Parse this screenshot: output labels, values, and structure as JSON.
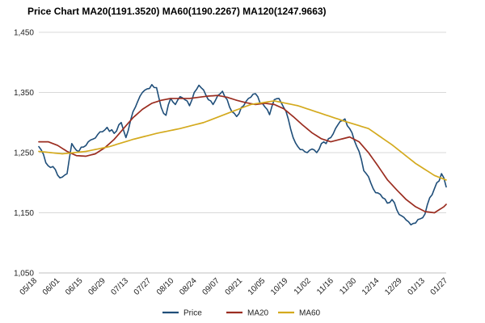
{
  "chart_data": {
    "type": "line",
    "title": "Price Chart MA20(1191.3520) MA60(1190.2267) MA120(1247.9663)",
    "xlabel": "",
    "ylabel": "",
    "ylim": [
      1050,
      1450
    ],
    "yticks": [
      1050,
      1150,
      1250,
      1350,
      1450
    ],
    "ytick_labels": [
      "1,050",
      "1,150",
      "1,250",
      "1,350",
      "1,450"
    ],
    "xtick_labels": [
      "05/18",
      "06/01",
      "06/15",
      "06/29",
      "07/13",
      "07/27",
      "08/10",
      "08/24",
      "09/07",
      "09/21",
      "10/05",
      "10/19",
      "11/02",
      "11/16",
      "11/30",
      "12/14",
      "12/29",
      "01/13",
      "01/27"
    ],
    "grid": "horizontal",
    "legend_position": "bottom",
    "x_count": 174,
    "series": [
      {
        "name": "Price",
        "color": "#1F4E79",
        "keypoints": [
          [
            0,
            1260
          ],
          [
            4,
            1228
          ],
          [
            7,
            1222
          ],
          [
            9,
            1208
          ],
          [
            12,
            1215
          ],
          [
            14,
            1265
          ],
          [
            17,
            1252
          ],
          [
            21,
            1268
          ],
          [
            25,
            1280
          ],
          [
            29,
            1292
          ],
          [
            32,
            1282
          ],
          [
            35,
            1300
          ],
          [
            37,
            1275
          ],
          [
            40,
            1318
          ],
          [
            42,
            1335
          ],
          [
            44,
            1350
          ],
          [
            46,
            1356
          ],
          [
            48,
            1363
          ],
          [
            50,
            1358
          ],
          [
            52,
            1325
          ],
          [
            54,
            1312
          ],
          [
            56,
            1340
          ],
          [
            58,
            1330
          ],
          [
            60,
            1343
          ],
          [
            62,
            1338
          ],
          [
            64,
            1328
          ],
          [
            66,
            1350
          ],
          [
            68,
            1362
          ],
          [
            70,
            1354
          ],
          [
            72,
            1338
          ],
          [
            74,
            1330
          ],
          [
            76,
            1345
          ],
          [
            78,
            1352
          ],
          [
            80,
            1338
          ],
          [
            82,
            1318
          ],
          [
            84,
            1310
          ],
          [
            86,
            1325
          ],
          [
            88,
            1335
          ],
          [
            90,
            1342
          ],
          [
            92,
            1348
          ],
          [
            94,
            1332
          ],
          [
            96,
            1326
          ],
          [
            98,
            1313
          ],
          [
            100,
            1338
          ],
          [
            102,
            1340
          ],
          [
            104,
            1325
          ],
          [
            106,
            1305
          ],
          [
            108,
            1275
          ],
          [
            110,
            1260
          ],
          [
            112,
            1255
          ],
          [
            114,
            1250
          ],
          [
            116,
            1256
          ],
          [
            118,
            1250
          ],
          [
            120,
            1265
          ],
          [
            122,
            1265
          ],
          [
            124,
            1275
          ],
          [
            126,
            1290
          ],
          [
            128,
            1302
          ],
          [
            130,
            1306
          ],
          [
            132,
            1290
          ],
          [
            134,
            1270
          ],
          [
            136,
            1252
          ],
          [
            138,
            1220
          ],
          [
            140,
            1210
          ],
          [
            142,
            1190
          ],
          [
            144,
            1183
          ],
          [
            146,
            1175
          ],
          [
            148,
            1166
          ],
          [
            150,
            1172
          ],
          [
            152,
            1155
          ],
          [
            154,
            1145
          ],
          [
            156,
            1138
          ],
          [
            158,
            1130
          ],
          [
            160,
            1133
          ],
          [
            162,
            1140
          ],
          [
            164,
            1148
          ],
          [
            166,
            1175
          ],
          [
            168,
            1190
          ],
          [
            170,
            1203
          ],
          [
            171,
            1215
          ],
          [
            172,
            1208
          ],
          [
            173,
            1193
          ]
        ]
      },
      {
        "name": "MA20",
        "color": "#9B2D20",
        "keypoints": [
          [
            0,
            1268
          ],
          [
            4,
            1268
          ],
          [
            8,
            1262
          ],
          [
            12,
            1252
          ],
          [
            16,
            1245
          ],
          [
            20,
            1244
          ],
          [
            24,
            1248
          ],
          [
            28,
            1258
          ],
          [
            32,
            1272
          ],
          [
            36,
            1290
          ],
          [
            40,
            1308
          ],
          [
            44,
            1322
          ],
          [
            48,
            1332
          ],
          [
            52,
            1337
          ],
          [
            56,
            1340
          ],
          [
            60,
            1340
          ],
          [
            64,
            1340
          ],
          [
            68,
            1342
          ],
          [
            72,
            1344
          ],
          [
            76,
            1345
          ],
          [
            80,
            1342
          ],
          [
            84,
            1337
          ],
          [
            88,
            1333
          ],
          [
            92,
            1330
          ],
          [
            96,
            1332
          ],
          [
            100,
            1330
          ],
          [
            104,
            1323
          ],
          [
            108,
            1310
          ],
          [
            112,
            1296
          ],
          [
            116,
            1283
          ],
          [
            120,
            1273
          ],
          [
            124,
            1268
          ],
          [
            128,
            1272
          ],
          [
            132,
            1276
          ],
          [
            136,
            1268
          ],
          [
            140,
            1250
          ],
          [
            144,
            1228
          ],
          [
            148,
            1205
          ],
          [
            152,
            1188
          ],
          [
            156,
            1172
          ],
          [
            160,
            1160
          ],
          [
            164,
            1152
          ],
          [
            168,
            1150
          ],
          [
            172,
            1160
          ],
          [
            176,
            1176
          ],
          [
            180,
            1191
          ]
        ]
      },
      {
        "name": "MA60",
        "color": "#D4AA1E",
        "keypoints": [
          [
            0,
            1252
          ],
          [
            10,
            1248
          ],
          [
            20,
            1252
          ],
          [
            30,
            1260
          ],
          [
            40,
            1272
          ],
          [
            50,
            1282
          ],
          [
            60,
            1290
          ],
          [
            70,
            1300
          ],
          [
            80,
            1315
          ],
          [
            90,
            1330
          ],
          [
            100,
            1336
          ],
          [
            110,
            1328
          ],
          [
            120,
            1315
          ],
          [
            130,
            1302
          ],
          [
            140,
            1290
          ],
          [
            150,
            1263
          ],
          [
            160,
            1232
          ],
          [
            168,
            1212
          ],
          [
            176,
            1200
          ],
          [
            182,
            1190
          ]
        ]
      }
    ]
  }
}
